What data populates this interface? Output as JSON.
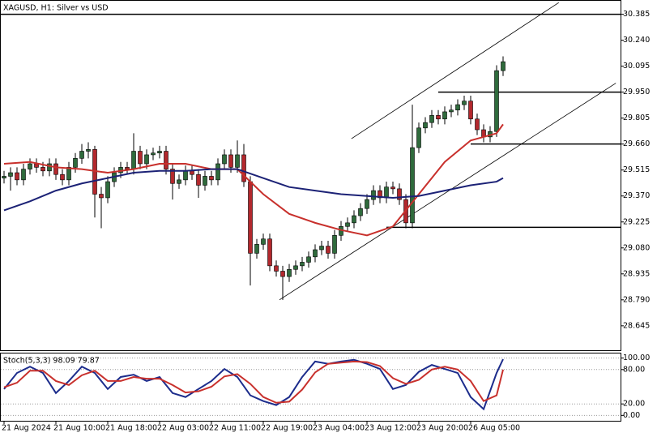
{
  "chart_data": [
    {
      "type": "candlestick",
      "title": "XAGUSD, H1:  Silver vs USD",
      "categories": [
        "21 Aug 2024",
        null,
        null,
        null,
        null,
        null,
        null,
        null,
        "21 Aug 10:00",
        null,
        null,
        null,
        null,
        null,
        null,
        null,
        "21 Aug 18:00",
        null,
        null,
        null,
        null,
        null,
        null,
        null,
        "22 Aug 03:00",
        null,
        null,
        null,
        null,
        null,
        null,
        null,
        "22 Aug 11:00",
        null,
        null,
        null,
        null,
        null,
        null,
        null,
        "22 Aug 19:00",
        null,
        null,
        null,
        null,
        null,
        null,
        null,
        "23 Aug 04:00",
        null,
        null,
        null,
        null,
        null,
        null,
        null,
        "23 Aug 12:00",
        null,
        null,
        null,
        null,
        null,
        null,
        null,
        "23 Aug 20:00",
        null,
        null,
        null,
        null,
        null,
        null,
        null,
        "26 Aug 05:00",
        null,
        null,
        null,
        null,
        null
      ],
      "open": [
        29.47,
        29.48,
        29.5,
        29.46,
        29.52,
        29.55,
        29.53,
        29.51,
        29.55,
        29.49,
        29.46,
        29.53,
        29.58,
        29.62,
        29.63,
        29.38,
        29.36,
        29.45,
        29.5,
        29.53,
        29.52,
        29.62,
        29.55,
        29.6,
        29.61,
        29.62,
        29.52,
        29.44,
        29.46,
        29.51,
        29.49,
        29.43,
        29.48,
        29.46,
        29.55,
        29.6,
        29.53,
        29.6,
        29.45,
        29.05,
        29.1,
        29.13,
        28.98,
        28.95,
        28.92,
        28.96,
        28.98,
        29.0,
        29.03,
        29.07,
        29.09,
        29.05,
        29.15,
        29.2,
        29.22,
        29.26,
        29.3,
        29.35,
        29.4,
        29.36,
        29.42,
        29.41,
        29.35,
        29.22,
        29.64,
        29.75,
        29.78,
        29.82,
        29.8,
        29.84,
        29.85,
        29.88,
        29.9,
        29.8,
        29.74,
        29.7,
        29.73,
        30.07
      ],
      "high": [
        29.51,
        29.53,
        29.53,
        29.55,
        29.58,
        29.58,
        29.56,
        29.58,
        29.58,
        29.52,
        29.56,
        29.61,
        29.66,
        29.67,
        29.65,
        29.42,
        29.48,
        29.53,
        29.56,
        29.56,
        29.72,
        29.65,
        29.63,
        29.64,
        29.65,
        29.65,
        29.55,
        29.49,
        29.54,
        29.54,
        29.52,
        29.51,
        29.51,
        29.58,
        29.63,
        29.63,
        29.68,
        29.66,
        29.48,
        29.13,
        29.16,
        29.16,
        29.01,
        28.98,
        28.99,
        29.01,
        29.03,
        29.06,
        29.1,
        29.12,
        29.12,
        29.18,
        29.23,
        29.25,
        29.29,
        29.33,
        29.38,
        29.43,
        29.43,
        29.45,
        29.45,
        29.44,
        29.38,
        29.88,
        29.78,
        29.81,
        29.85,
        29.85,
        29.87,
        29.88,
        29.91,
        29.93,
        29.93,
        29.83,
        29.77,
        29.76,
        30.1,
        30.15
      ],
      "low": [
        29.44,
        29.4,
        29.43,
        29.43,
        29.49,
        29.5,
        29.48,
        29.48,
        29.46,
        29.43,
        29.43,
        29.5,
        29.55,
        29.58,
        29.25,
        29.19,
        29.33,
        29.42,
        29.47,
        29.49,
        29.49,
        29.52,
        29.52,
        29.57,
        29.58,
        29.49,
        29.35,
        29.41,
        29.43,
        29.46,
        29.36,
        29.4,
        29.43,
        29.43,
        29.52,
        29.5,
        29.5,
        29.42,
        28.87,
        29.02,
        29.07,
        28.95,
        28.92,
        28.79,
        28.89,
        28.93,
        28.95,
        28.97,
        29.0,
        29.04,
        29.02,
        29.02,
        29.12,
        29.17,
        29.19,
        29.23,
        29.27,
        29.32,
        29.33,
        29.33,
        29.38,
        29.32,
        29.19,
        29.19,
        29.61,
        29.72,
        29.75,
        29.77,
        29.77,
        29.81,
        29.82,
        29.85,
        29.77,
        29.71,
        29.67,
        29.67,
        29.7,
        30.04
      ],
      "close": [
        29.48,
        29.5,
        29.46,
        29.52,
        29.55,
        29.53,
        29.51,
        29.55,
        29.49,
        29.46,
        29.53,
        29.58,
        29.62,
        29.63,
        29.38,
        29.36,
        29.45,
        29.5,
        29.53,
        29.52,
        29.62,
        29.55,
        29.6,
        29.61,
        29.62,
        29.52,
        29.44,
        29.46,
        29.51,
        29.49,
        29.43,
        29.48,
        29.46,
        29.55,
        29.6,
        29.53,
        29.6,
        29.45,
        29.05,
        29.1,
        29.13,
        28.98,
        28.95,
        28.92,
        28.96,
        28.98,
        29.0,
        29.03,
        29.07,
        29.09,
        29.05,
        29.15,
        29.2,
        29.22,
        29.26,
        29.3,
        29.35,
        29.4,
        29.36,
        29.42,
        29.41,
        29.35,
        29.22,
        29.64,
        29.75,
        29.78,
        29.82,
        29.8,
        29.84,
        29.85,
        29.88,
        29.9,
        29.8,
        29.74,
        29.7,
        29.73,
        30.07,
        30.12
      ],
      "up_color": "#2f6b3c",
      "down_color": "#b3282d",
      "overlays": [
        {
          "color": "#c8302c",
          "x": [
            0,
            4,
            8,
            12,
            16,
            20,
            24,
            28,
            32,
            36,
            40,
            44,
            48,
            52,
            56,
            60,
            64,
            68,
            72,
            76,
            77
          ],
          "values": [
            29.55,
            29.56,
            29.53,
            29.52,
            29.5,
            29.52,
            29.55,
            29.55,
            29.52,
            29.52,
            29.38,
            29.27,
            29.22,
            29.18,
            29.15,
            29.2,
            29.38,
            29.56,
            29.68,
            29.72,
            29.77
          ]
        },
        {
          "color": "#1c2276",
          "x": [
            0,
            4,
            8,
            12,
            16,
            20,
            24,
            28,
            32,
            36,
            40,
            44,
            48,
            52,
            56,
            60,
            64,
            68,
            72,
            76,
            77
          ],
          "values": [
            29.29,
            29.34,
            29.4,
            29.44,
            29.47,
            29.5,
            29.51,
            29.51,
            29.52,
            29.52,
            29.47,
            29.42,
            29.4,
            29.38,
            29.37,
            29.36,
            29.37,
            29.4,
            29.43,
            29.45,
            29.47
          ]
        }
      ],
      "hlines": [
        {
          "value": 30.385,
          "start": -1
        },
        {
          "value": 29.95,
          "start": 67
        },
        {
          "value": 29.66,
          "start": 72
        },
        {
          "value": 29.195,
          "start": 59
        }
      ],
      "trendlines": [
        {
          "x": [
            53.6,
            85.6
          ],
          "y": [
            29.69,
            30.45
          ]
        },
        {
          "x": [
            42.5,
            94.4
          ],
          "y": [
            28.79,
            30.0
          ]
        }
      ],
      "ylim": [
        28.513,
        30.46
      ],
      "yticks": [
        30.385,
        {
          "value": 30.24,
          "label": "30.240"
        },
        30.095,
        {
          "value": 29.95,
          "label": "29.950"
        },
        29.805,
        {
          "value": 29.66,
          "label": "29.660"
        },
        29.515,
        {
          "value": 29.37,
          "label": "29.370"
        },
        29.225,
        {
          "value": 29.08,
          "label": "29.080"
        },
        28.935,
        {
          "value": 28.79,
          "label": "28.790"
        },
        28.645
      ]
    },
    {
      "type": "line",
      "title": "Stoch(5,3,3) 98.09 79.87",
      "series": [
        {
          "color": "#1c2c8c",
          "x": [
            0,
            2,
            4,
            6,
            8,
            10,
            12,
            14,
            16,
            18,
            20,
            22,
            24,
            26,
            28,
            30,
            32,
            34,
            36,
            38,
            40,
            42,
            44,
            46,
            48,
            50,
            52,
            54,
            56,
            58,
            60,
            62,
            64,
            66,
            68,
            70,
            72,
            74,
            76,
            77
          ],
          "values": [
            46,
            74,
            85,
            74,
            39,
            60,
            85,
            74,
            46,
            67,
            71,
            60,
            67,
            39,
            32,
            46,
            60,
            81,
            67,
            35,
            25,
            18,
            32,
            67,
            94,
            90,
            94,
            97,
            90,
            81,
            46,
            53,
            76,
            88,
            81,
            74,
            32,
            11,
            74,
            98.09
          ]
        },
        {
          "color": "#c8302c",
          "x": [
            0,
            2,
            4,
            6,
            8,
            10,
            12,
            14,
            16,
            18,
            20,
            22,
            24,
            26,
            28,
            30,
            32,
            34,
            36,
            38,
            40,
            42,
            44,
            46,
            48,
            50,
            52,
            54,
            56,
            58,
            60,
            62,
            64,
            66,
            68,
            70,
            72,
            74,
            76,
            77
          ],
          "values": [
            49,
            57,
            78,
            78,
            60,
            53,
            70,
            78,
            60,
            60,
            67,
            64,
            64,
            53,
            40,
            42,
            50,
            68,
            72,
            55,
            32,
            22,
            24,
            45,
            75,
            90,
            92,
            94,
            93,
            86,
            65,
            55,
            62,
            80,
            85,
            80,
            60,
            25,
            35,
            79.87
          ]
        }
      ],
      "ylim": [
        -8,
        108
      ],
      "yticks": [
        {
          "value": 100,
          "label": "100.00"
        },
        {
          "value": 80,
          "label": "80.00"
        },
        {
          "value": 20,
          "label": "20.00"
        },
        {
          "value": 0,
          "label": "0.00"
        }
      ]
    }
  ]
}
